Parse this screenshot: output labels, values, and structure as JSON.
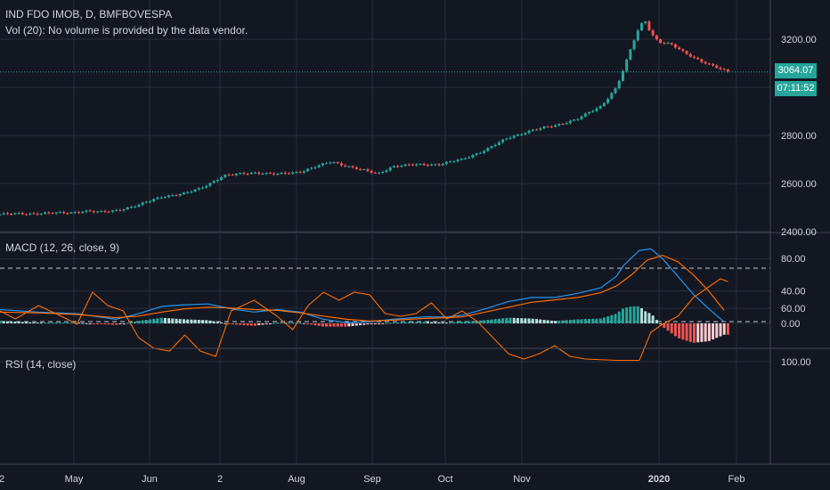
{
  "header": {
    "symbol_line": "IND FDO IMOB, D, BMFBOVESPA",
    "volume_line": "Vol (20): No volume is provided by the data vendor."
  },
  "price_badge": {
    "last": "3064.07",
    "countdown": "07:11:52"
  },
  "macd_label": "MACD (12, 26, close, 9)",
  "rsi_label": "RSI (14, close)",
  "colors": {
    "up": "#26a69a",
    "down": "#ef5350",
    "macd": "#2196f3",
    "signal": "#ff6d00",
    "rsi": "#ff6d00",
    "rsi_band": "#7e57c2",
    "background": "#131722",
    "grid": "#2a2e39"
  },
  "chart_data": [
    {
      "type": "candlestick",
      "x_axis": [
        "2",
        "May",
        "Jun",
        "2",
        "Aug",
        "Sep",
        "Oct",
        "Nov",
        "2020",
        "Feb"
      ],
      "y_ticks": [
        "3200.00",
        "2800.00",
        "2600.00",
        "2400.00"
      ],
      "ylim": [
        2400,
        3300
      ],
      "last_price": 3064.07,
      "close_path": [
        [
          0,
          2472
        ],
        [
          0.05,
          2476
        ],
        [
          0.09,
          2478
        ],
        [
          0.11,
          2486
        ],
        [
          0.13,
          2480
        ],
        [
          0.15,
          2488
        ],
        [
          0.18,
          2510
        ],
        [
          0.21,
          2546
        ],
        [
          0.24,
          2558
        ],
        [
          0.26,
          2580
        ],
        [
          0.29,
          2632
        ],
        [
          0.33,
          2646
        ],
        [
          0.36,
          2638
        ],
        [
          0.39,
          2650
        ],
        [
          0.43,
          2690
        ],
        [
          0.46,
          2665
        ],
        [
          0.49,
          2640
        ],
        [
          0.51,
          2672
        ],
        [
          0.54,
          2678
        ],
        [
          0.57,
          2680
        ],
        [
          0.6,
          2700
        ],
        [
          0.63,
          2740
        ],
        [
          0.66,
          2790
        ],
        [
          0.69,
          2822
        ],
        [
          0.72,
          2840
        ],
        [
          0.75,
          2870
        ],
        [
          0.78,
          2920
        ],
        [
          0.8,
          3000
        ],
        [
          0.81,
          3080
        ],
        [
          0.82,
          3170
        ],
        [
          0.83,
          3250
        ],
        [
          0.837,
          3280
        ],
        [
          0.845,
          3225
        ],
        [
          0.855,
          3190
        ],
        [
          0.87,
          3180
        ],
        [
          0.89,
          3140
        ],
        [
          0.91,
          3110
        ],
        [
          0.925,
          3090
        ],
        [
          0.935,
          3075
        ],
        [
          0.945,
          3064.07
        ]
      ]
    },
    {
      "type": "line",
      "name": "MACD (12, 26, close, 9)",
      "y_ticks": [
        "80.00",
        "40.00",
        "0.00"
      ],
      "ylim": [
        -20,
        100
      ],
      "series": [
        {
          "name": "macd",
          "points": [
            [
              0,
              17
            ],
            [
              0.05,
              14
            ],
            [
              0.1,
              12
            ],
            [
              0.15,
              5
            ],
            [
              0.18,
              12
            ],
            [
              0.21,
              21
            ],
            [
              0.24,
              23
            ],
            [
              0.27,
              24
            ],
            [
              0.3,
              18
            ],
            [
              0.33,
              14
            ],
            [
              0.36,
              17
            ],
            [
              0.39,
              14
            ],
            [
              0.42,
              5
            ],
            [
              0.45,
              1
            ],
            [
              0.48,
              2
            ],
            [
              0.51,
              5
            ],
            [
              0.55,
              8
            ],
            [
              0.58,
              8
            ],
            [
              0.6,
              10
            ],
            [
              0.63,
              18
            ],
            [
              0.66,
              27
            ],
            [
              0.69,
              32
            ],
            [
              0.72,
              32
            ],
            [
              0.75,
              37
            ],
            [
              0.78,
              44
            ],
            [
              0.8,
              58
            ],
            [
              0.81,
              72
            ],
            [
              0.83,
              90
            ],
            [
              0.845,
              92
            ],
            [
              0.86,
              80
            ],
            [
              0.88,
              58
            ],
            [
              0.9,
              36
            ],
            [
              0.92,
              18
            ],
            [
              0.94,
              2
            ]
          ]
        },
        {
          "name": "signal",
          "points": [
            [
              0,
              14
            ],
            [
              0.05,
              13
            ],
            [
              0.1,
              11
            ],
            [
              0.15,
              7
            ],
            [
              0.18,
              9
            ],
            [
              0.21,
              14
            ],
            [
              0.24,
              18
            ],
            [
              0.27,
              20
            ],
            [
              0.3,
              19
            ],
            [
              0.33,
              17
            ],
            [
              0.36,
              16
            ],
            [
              0.39,
              13
            ],
            [
              0.42,
              9
            ],
            [
              0.45,
              5
            ],
            [
              0.48,
              3
            ],
            [
              0.51,
              4
            ],
            [
              0.55,
              6
            ],
            [
              0.58,
              7
            ],
            [
              0.6,
              8
            ],
            [
              0.63,
              14
            ],
            [
              0.66,
              20
            ],
            [
              0.69,
              26
            ],
            [
              0.72,
              29
            ],
            [
              0.75,
              32
            ],
            [
              0.78,
              38
            ],
            [
              0.8,
              46
            ],
            [
              0.82,
              60
            ],
            [
              0.84,
              78
            ],
            [
              0.86,
              84
            ],
            [
              0.88,
              76
            ],
            [
              0.9,
              60
            ],
            [
              0.92,
              40
            ],
            [
              0.94,
              16
            ]
          ]
        }
      ]
    },
    {
      "type": "line",
      "name": "RSI (14, close)",
      "y_ticks": [
        "100.00",
        "60.00"
      ],
      "ylim": [
        10,
        110
      ],
      "levels": [
        70,
        30
      ],
      "series": [
        {
          "name": "rsi",
          "points": [
            [
              0,
              62
            ],
            [
              0.02,
              68
            ],
            [
              0.05,
              58
            ],
            [
              0.08,
              66
            ],
            [
              0.1,
              72
            ],
            [
              0.12,
              48
            ],
            [
              0.14,
              58
            ],
            [
              0.16,
              62
            ],
            [
              0.18,
              82
            ],
            [
              0.2,
              90
            ],
            [
              0.22,
              92
            ],
            [
              0.24,
              80
            ],
            [
              0.26,
              92
            ],
            [
              0.28,
              96
            ],
            [
              0.3,
              62
            ],
            [
              0.33,
              54
            ],
            [
              0.36,
              66
            ],
            [
              0.38,
              76
            ],
            [
              0.4,
              58
            ],
            [
              0.42,
              48
            ],
            [
              0.44,
              54
            ],
            [
              0.46,
              48
            ],
            [
              0.48,
              50
            ],
            [
              0.5,
              64
            ],
            [
              0.52,
              66
            ],
            [
              0.54,
              64
            ],
            [
              0.56,
              56
            ],
            [
              0.58,
              68
            ],
            [
              0.6,
              62
            ],
            [
              0.62,
              70
            ],
            [
              0.64,
              82
            ],
            [
              0.66,
              94
            ],
            [
              0.68,
              98
            ],
            [
              0.7,
              94
            ],
            [
              0.72,
              88
            ],
            [
              0.74,
              96
            ],
            [
              0.76,
              98
            ],
            [
              0.8,
              99
            ],
            [
              0.83,
              99
            ],
            [
              0.845,
              78
            ],
            [
              0.86,
              72
            ],
            [
              0.88,
              66
            ],
            [
              0.9,
              52
            ],
            [
              0.92,
              44
            ],
            [
              0.935,
              38
            ],
            [
              0.945,
              40
            ]
          ]
        }
      ]
    }
  ]
}
